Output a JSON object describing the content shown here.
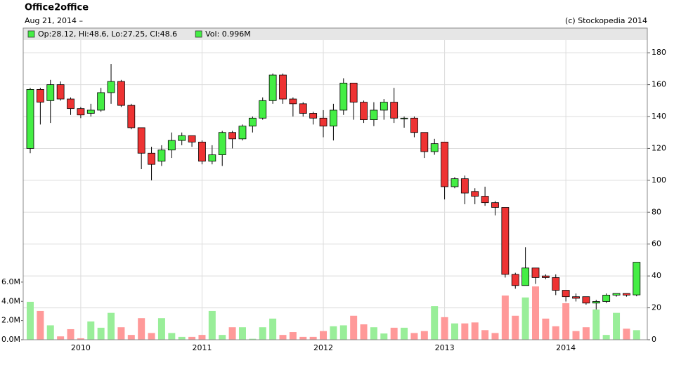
{
  "chart_data": {
    "type": "candlestick",
    "title": "Office2office",
    "subtitle": "Aug 21, 2014 –",
    "credit": "(c) Stockopedia 2014",
    "legend": [
      "Op:28.12, Hi:48.6, Lo:27.25, Cl:48.6",
      "Vol: 0.996M"
    ],
    "categories": [
      null,
      null,
      null,
      null,
      null,
      "2010",
      null,
      null,
      null,
      null,
      null,
      null,
      null,
      null,
      null,
      null,
      null,
      "2011",
      null,
      null,
      null,
      null,
      null,
      null,
      null,
      null,
      null,
      null,
      null,
      "2012",
      null,
      null,
      null,
      null,
      null,
      null,
      null,
      null,
      null,
      null,
      null,
      "2013",
      null,
      null,
      null,
      null,
      null,
      null,
      null,
      null,
      null,
      null,
      null,
      "2014",
      null,
      null,
      null,
      null,
      null,
      null,
      null
    ],
    "open": [
      120,
      157,
      150,
      160,
      151,
      145,
      142,
      144,
      155,
      162,
      147,
      133,
      117,
      112,
      119,
      125,
      128,
      124,
      112,
      116,
      130,
      126,
      134,
      139,
      150,
      166,
      151,
      148,
      142,
      139,
      134,
      144,
      161,
      149,
      138,
      144,
      149,
      139,
      139,
      130,
      118,
      124,
      96,
      101,
      93,
      90,
      86,
      83,
      41,
      34,
      45,
      40,
      39,
      31,
      27,
      27,
      23,
      24,
      28,
      29,
      28.12
    ],
    "high": [
      158,
      158,
      163,
      162,
      152,
      146,
      148,
      158,
      173,
      163,
      148,
      133,
      121,
      122,
      130,
      130,
      128,
      125,
      122,
      131,
      131,
      135,
      140,
      152,
      167,
      167,
      152,
      149,
      143,
      144,
      148,
      164,
      161,
      150,
      149,
      151,
      158,
      140,
      140,
      130,
      126,
      124,
      102,
      103,
      95,
      96,
      87,
      83,
      42,
      58,
      45,
      41,
      41,
      31,
      29,
      27,
      25,
      29,
      29,
      29,
      48.6
    ],
    "low": [
      117,
      135,
      136,
      150,
      141,
      139,
      140,
      143,
      148,
      146,
      132,
      107,
      100,
      109,
      114,
      122,
      121,
      110,
      110,
      109,
      120,
      125,
      130,
      138,
      148,
      148,
      140,
      140,
      135,
      127,
      125,
      141,
      138,
      136,
      134,
      138,
      136,
      133,
      127,
      114,
      116,
      88,
      95,
      85,
      85,
      84,
      78,
      39,
      32,
      35,
      35,
      38,
      28,
      24,
      24,
      22,
      19,
      23,
      27,
      27,
      27.25
    ],
    "close": [
      157,
      149,
      160,
      151,
      145,
      141,
      144,
      155,
      162,
      147,
      133,
      117,
      110,
      119,
      125,
      128,
      124,
      112,
      116,
      130,
      126,
      134,
      139,
      150,
      166,
      151,
      148,
      142,
      139,
      134,
      144,
      161,
      149,
      138,
      144,
      149,
      139,
      139,
      130,
      118,
      123,
      96,
      101,
      92,
      90,
      86,
      83,
      41,
      34,
      45,
      39,
      39,
      31,
      27,
      26,
      23,
      24,
      28,
      29,
      28,
      48.6
    ],
    "up_color": "#44ee44",
    "down_color": "#ee3333",
    "ylim": [
      0,
      188
    ],
    "yticks": [
      0,
      20,
      40,
      60,
      80,
      100,
      120,
      140,
      160,
      180
    ],
    "grid": true,
    "volume": {
      "values": [
        3.95,
        3.0,
        1.5,
        0.35,
        1.1,
        0.15,
        1.9,
        1.25,
        2.8,
        1.3,
        0.5,
        2.25,
        0.7,
        2.25,
        0.7,
        0.3,
        0.3,
        0.5,
        3.0,
        0.5,
        1.3,
        1.3,
        0.1,
        1.3,
        2.2,
        0.5,
        0.8,
        0.3,
        0.3,
        0.9,
        1.4,
        1.5,
        2.5,
        1.6,
        1.3,
        0.65,
        1.25,
        1.25,
        0.7,
        0.9,
        3.5,
        2.35,
        1.7,
        1.7,
        1.8,
        1.0,
        0.7,
        4.6,
        2.5,
        4.4,
        5.55,
        2.2,
        1.4,
        3.8,
        0.9,
        1.3,
        3.15,
        0.5,
        2.8,
        1.15,
        0.996
      ],
      "ylim": [
        0,
        31.2
      ],
      "yticks": [
        {
          "value": 0,
          "label": "0.0M"
        },
        {
          "value": 2,
          "label": "2.0M"
        },
        {
          "value": 4,
          "label": "4.0M"
        },
        {
          "value": 6,
          "label": "6.0M"
        }
      ],
      "up_color": "#99ee99",
      "down_color": "#ff9999"
    }
  }
}
